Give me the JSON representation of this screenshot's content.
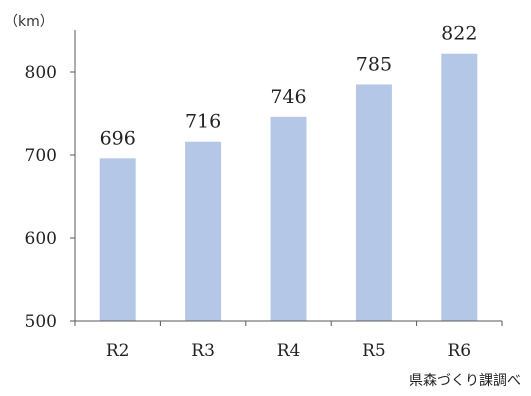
{
  "chart_data": {
    "type": "bar",
    "unit_label": "（km）",
    "categories": [
      "R2",
      "R3",
      "R4",
      "R5",
      "R6"
    ],
    "values": [
      696,
      716,
      746,
      785,
      822
    ],
    "ylim": [
      500,
      850
    ],
    "yticks": [
      500,
      600,
      700,
      800
    ],
    "bar_color": "#b4c7e7",
    "grid": false,
    "source": "県森づくり課調べ"
  }
}
